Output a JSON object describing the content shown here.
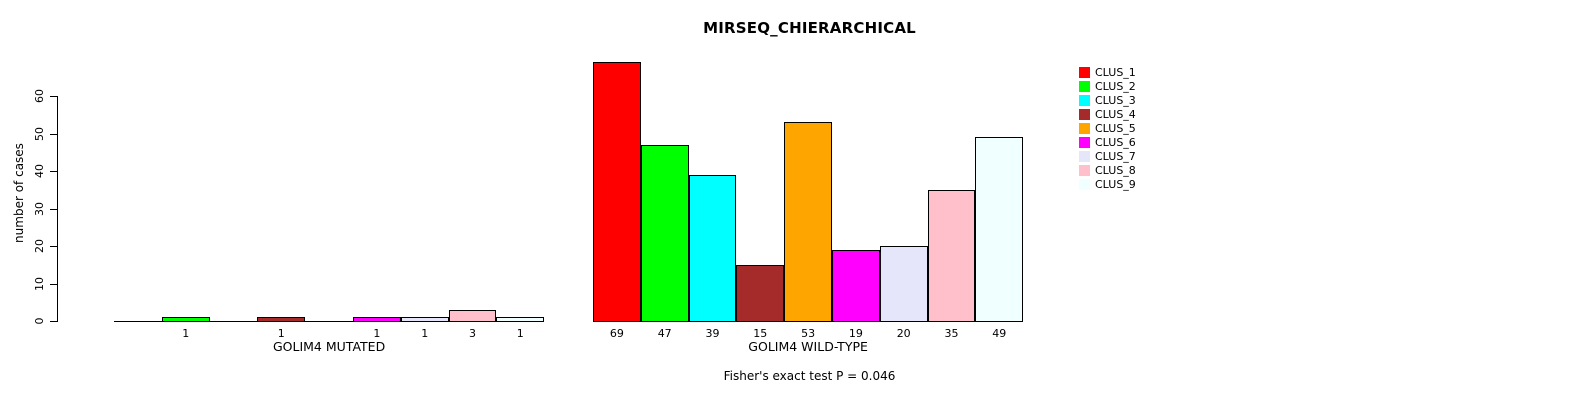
{
  "chart_data": {
    "type": "bar",
    "title": "MIRSEQ_CHIERARCHICAL",
    "ylabel": "number of cases",
    "footer_note": "Fisher's exact test P = 0.046",
    "ylim": [
      0,
      60
    ],
    "yticks": [
      0,
      10,
      20,
      30,
      40,
      50,
      60
    ],
    "grid": false,
    "legend_position": "top-right",
    "categories": [
      "CLUS_1",
      "CLUS_2",
      "CLUS_3",
      "CLUS_4",
      "CLUS_5",
      "CLUS_6",
      "CLUS_7",
      "CLUS_8",
      "CLUS_9"
    ],
    "cluster_colors": [
      "#FF0000",
      "#00FF00",
      "#00FFFF",
      "#A52A2A",
      "#FFA500",
      "#FF00FF",
      "#E6E6FA",
      "#FFC0CB",
      "#F0FFFF"
    ],
    "groups": [
      {
        "label": "GOLIM4 MUTATED",
        "values": [
          0,
          1,
          0,
          1,
          0,
          1,
          1,
          3,
          1
        ]
      },
      {
        "label": "GOLIM4 WILD-TYPE",
        "values": [
          69,
          47,
          39,
          15,
          53,
          19,
          20,
          35,
          49
        ]
      }
    ]
  }
}
